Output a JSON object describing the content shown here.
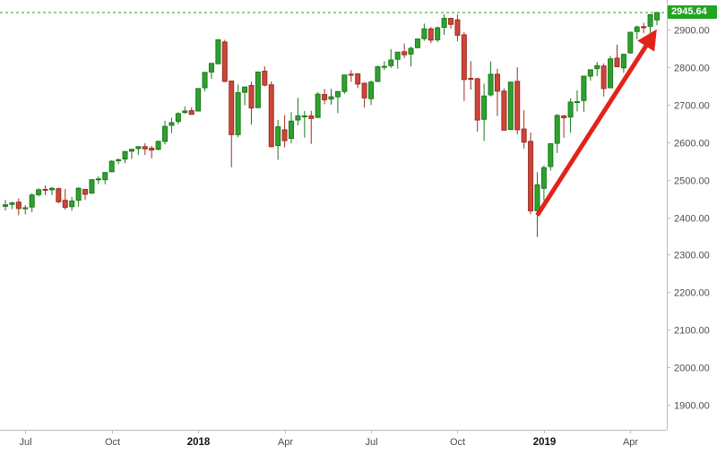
{
  "colors": {
    "background": "#ffffff",
    "up": "#2fa12f",
    "up_border": "#1b791b",
    "down": "#cc4639",
    "down_border": "#9c2f24",
    "axis_text": "#4d4d4d",
    "year_text": "#111111",
    "axis_line": "#bbbbbb",
    "last_price_line": "#22a522",
    "last_price_box_bg": "#22a522",
    "last_price_box_text": "#ffffff",
    "arrow": "#e2231a"
  },
  "chart_data": {
    "type": "candlestick",
    "title": "",
    "grid": false,
    "legend": false,
    "interval_estimate": "1W",
    "ohlc_format": [
      "week_ending",
      "open",
      "high",
      "low",
      "close"
    ],
    "last_price": {
      "label": "2945.64",
      "value": 2945.64
    },
    "y_axis": {
      "side": "right",
      "min_visible": 1833,
      "max_visible": 2979,
      "ticks": [
        {
          "label": "2900.00",
          "value": 2900
        },
        {
          "label": "2800.00",
          "value": 2800
        },
        {
          "label": "2700.00",
          "value": 2700
        },
        {
          "label": "2600.00",
          "value": 2600
        },
        {
          "label": "2500.00",
          "value": 2500
        },
        {
          "label": "2400.00",
          "value": 2400
        },
        {
          "label": "2300.00",
          "value": 2300
        },
        {
          "label": "2200.00",
          "value": 2200
        },
        {
          "label": "2100.00",
          "value": 2100
        },
        {
          "label": "2000.00",
          "value": 2000
        },
        {
          "label": "1900.00",
          "value": 1900
        }
      ]
    },
    "x_axis": {
      "labels": [
        {
          "label": "Jul",
          "index": 3,
          "bold": false
        },
        {
          "label": "Oct",
          "index": 16,
          "bold": false
        },
        {
          "label": "2018",
          "index": 29,
          "bold": true
        },
        {
          "label": "Apr",
          "index": 42,
          "bold": false
        },
        {
          "label": "Jul",
          "index": 55,
          "bold": false
        },
        {
          "label": "Oct",
          "index": 68,
          "bold": false
        },
        {
          "label": "2019",
          "index": 81,
          "bold": true
        },
        {
          "label": "Apr",
          "index": 94,
          "bold": false
        }
      ]
    },
    "annotations": [
      {
        "type": "arrow",
        "color": "#e2231a",
        "stroke_width": 5,
        "from": {
          "index": 80,
          "price": 2405
        },
        "to": {
          "index": 97.5,
          "price": 2888
        }
      }
    ],
    "candles": [
      [
        "2017-06-16",
        2429,
        2446,
        2418,
        2433
      ],
      [
        "2017-06-23",
        2434,
        2441,
        2421,
        2438
      ],
      [
        "2017-06-30",
        2440,
        2450,
        2405,
        2423
      ],
      [
        "2017-07-07",
        2425,
        2432,
        2407,
        2425
      ],
      [
        "2017-07-14",
        2427,
        2464,
        2413,
        2459
      ],
      [
        "2017-07-21",
        2460,
        2477,
        2455,
        2473
      ],
      [
        "2017-07-28",
        2474,
        2484,
        2459,
        2472
      ],
      [
        "2017-08-04",
        2473,
        2480,
        2459,
        2477
      ],
      [
        "2017-08-11",
        2476,
        2479,
        2437,
        2441
      ],
      [
        "2017-08-18",
        2445,
        2475,
        2420,
        2426
      ],
      [
        "2017-08-25",
        2428,
        2454,
        2417,
        2443
      ],
      [
        "2017-09-01",
        2445,
        2480,
        2428,
        2477
      ],
      [
        "2017-09-08",
        2474,
        2475,
        2446,
        2461
      ],
      [
        "2017-09-15",
        2464,
        2500,
        2462,
        2500
      ],
      [
        "2017-09-22",
        2502,
        2509,
        2488,
        2502
      ],
      [
        "2017-09-29",
        2500,
        2519,
        2488,
        2519
      ],
      [
        "2017-10-06",
        2521,
        2552,
        2520,
        2549
      ],
      [
        "2017-10-13",
        2551,
        2557,
        2541,
        2553
      ],
      [
        "2017-10-20",
        2555,
        2575,
        2544,
        2575
      ],
      [
        "2017-10-27",
        2576,
        2582,
        2555,
        2581
      ],
      [
        "2017-11-03",
        2583,
        2588,
        2566,
        2588
      ],
      [
        "2017-11-10",
        2588,
        2597,
        2566,
        2582
      ],
      [
        "2017-11-17",
        2584,
        2590,
        2557,
        2579
      ],
      [
        "2017-11-24",
        2581,
        2604,
        2578,
        2602
      ],
      [
        "2017-12-01",
        2602,
        2657,
        2594,
        2642
      ],
      [
        "2017-12-08",
        2645,
        2665,
        2624,
        2652
      ],
      [
        "2017-12-15",
        2655,
        2680,
        2648,
        2676
      ],
      [
        "2017-12-22",
        2679,
        2695,
        2676,
        2683
      ],
      [
        "2017-12-29",
        2684,
        2693,
        2674,
        2674
      ],
      [
        "2018-01-05",
        2683,
        2743,
        2682,
        2743
      ],
      [
        "2018-01-12",
        2745,
        2787,
        2736,
        2786
      ],
      [
        "2018-01-19",
        2787,
        2810,
        2769,
        2810
      ],
      [
        "2018-01-26",
        2809,
        2873,
        2808,
        2873
      ],
      [
        "2018-02-02",
        2867,
        2873,
        2760,
        2762
      ],
      [
        "2018-02-09",
        2763,
        2764,
        2533,
        2620
      ],
      [
        "2018-02-16",
        2620,
        2754,
        2613,
        2732
      ],
      [
        "2018-02-23",
        2733,
        2748,
        2698,
        2747
      ],
      [
        "2018-03-02",
        2751,
        2761,
        2647,
        2691
      ],
      [
        "2018-03-09",
        2692,
        2787,
        2692,
        2787
      ],
      [
        "2018-03-16",
        2789,
        2802,
        2749,
        2752
      ],
      [
        "2018-03-23",
        2753,
        2762,
        2586,
        2588
      ],
      [
        "2018-03-29",
        2591,
        2659,
        2553,
        2641
      ],
      [
        "2018-04-06",
        2633,
        2672,
        2586,
        2604
      ],
      [
        "2018-04-13",
        2610,
        2680,
        2597,
        2656
      ],
      [
        "2018-04-20",
        2659,
        2718,
        2645,
        2670
      ],
      [
        "2018-04-27",
        2669,
        2683,
        2612,
        2670
      ],
      [
        "2018-05-04",
        2670,
        2684,
        2595,
        2663
      ],
      [
        "2018-05-11",
        2666,
        2733,
        2664,
        2728
      ],
      [
        "2018-05-18",
        2727,
        2742,
        2701,
        2713
      ],
      [
        "2018-05-25",
        2715,
        2742,
        2700,
        2721
      ],
      [
        "2018-06-01",
        2721,
        2736,
        2677,
        2735
      ],
      [
        "2018-06-08",
        2735,
        2779,
        2729,
        2779
      ],
      [
        "2018-06-15",
        2781,
        2792,
        2761,
        2780
      ],
      [
        "2018-06-22",
        2782,
        2784,
        2744,
        2755
      ],
      [
        "2018-06-29",
        2757,
        2759,
        2692,
        2718
      ],
      [
        "2018-07-06",
        2716,
        2764,
        2699,
        2760
      ],
      [
        "2018-07-13",
        2762,
        2804,
        2760,
        2801
      ],
      [
        "2018-07-20",
        2802,
        2816,
        2792,
        2802
      ],
      [
        "2018-07-27",
        2804,
        2848,
        2798,
        2819
      ],
      [
        "2018-08-03",
        2821,
        2840,
        2796,
        2840
      ],
      [
        "2018-08-10",
        2841,
        2863,
        2824,
        2833
      ],
      [
        "2018-08-17",
        2835,
        2855,
        2802,
        2850
      ],
      [
        "2018-08-24",
        2852,
        2876,
        2850,
        2875
      ],
      [
        "2018-08-31",
        2876,
        2916,
        2870,
        2902
      ],
      [
        "2018-09-07",
        2902,
        2907,
        2864,
        2872
      ],
      [
        "2018-09-14",
        2873,
        2908,
        2867,
        2905
      ],
      [
        "2018-09-21",
        2906,
        2941,
        2886,
        2930
      ],
      [
        "2018-09-28",
        2930,
        2931,
        2903,
        2914
      ],
      [
        "2018-10-05",
        2926,
        2940,
        2869,
        2885
      ],
      [
        "2018-10-12",
        2886,
        2894,
        2710,
        2767
      ],
      [
        "2018-10-19",
        2770,
        2816,
        2740,
        2768
      ],
      [
        "2018-10-26",
        2769,
        2772,
        2628,
        2659
      ],
      [
        "2018-11-02",
        2661,
        2756,
        2603,
        2723
      ],
      [
        "2018-11-09",
        2726,
        2815,
        2722,
        2781
      ],
      [
        "2018-11-16",
        2781,
        2796,
        2670,
        2736
      ],
      [
        "2018-11-23",
        2736,
        2743,
        2631,
        2632
      ],
      [
        "2018-11-30",
        2634,
        2760,
        2632,
        2760
      ],
      [
        "2018-12-07",
        2762,
        2800,
        2621,
        2633
      ],
      [
        "2018-12-14",
        2635,
        2685,
        2583,
        2600
      ],
      [
        "2018-12-21",
        2602,
        2626,
        2408,
        2417
      ],
      [
        "2018-12-28",
        2417,
        2520,
        2347,
        2486
      ],
      [
        "2019-01-04",
        2477,
        2538,
        2444,
        2532
      ],
      [
        "2019-01-11",
        2535,
        2597,
        2524,
        2596
      ],
      [
        "2019-01-18",
        2597,
        2675,
        2571,
        2671
      ],
      [
        "2019-01-25",
        2670,
        2673,
        2612,
        2665
      ],
      [
        "2019-02-01",
        2667,
        2717,
        2625,
        2707
      ],
      [
        "2019-02-08",
        2707,
        2738,
        2682,
        2708
      ],
      [
        "2019-02-15",
        2711,
        2776,
        2681,
        2776
      ],
      [
        "2019-02-22",
        2776,
        2794,
        2764,
        2793
      ],
      [
        "2019-03-01",
        2796,
        2814,
        2776,
        2804
      ],
      [
        "2019-03-08",
        2803,
        2810,
        2722,
        2743
      ],
      [
        "2019-03-15",
        2745,
        2830,
        2744,
        2822
      ],
      [
        "2019-03-22",
        2824,
        2860,
        2800,
        2801
      ],
      [
        "2019-03-29",
        2798,
        2836,
        2785,
        2834
      ],
      [
        "2019-04-05",
        2838,
        2893,
        2836,
        2893
      ],
      [
        "2019-04-12",
        2895,
        2911,
        2874,
        2907
      ],
      [
        "2019-04-18",
        2908,
        2918,
        2891,
        2905
      ],
      [
        "2019-04-26",
        2909,
        2940,
        2891,
        2940
      ],
      [
        "2019-05-03",
        2926,
        2946,
        2912,
        2945.64
      ]
    ]
  }
}
